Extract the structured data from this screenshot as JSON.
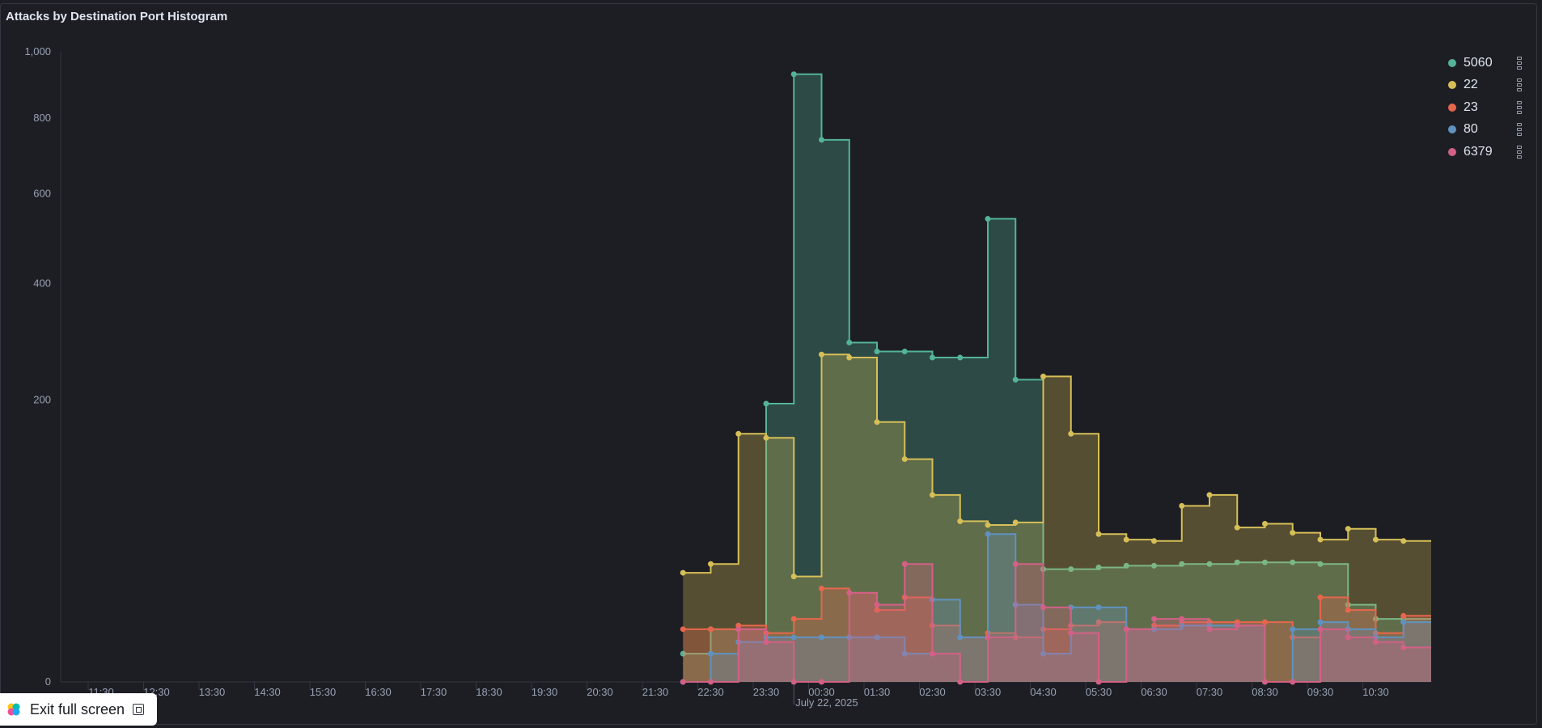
{
  "panel": {
    "title": "Attacks by Destination Port Histogram"
  },
  "exit_fullscreen": {
    "label": "Exit full screen",
    "icon": "fullscreen-exit-icon",
    "logo": "elastic-logo-icon"
  },
  "chart_data": {
    "type": "area",
    "title": "Attacks by Destination Port Histogram",
    "stacked": false,
    "step": true,
    "y_scale": "sqrt",
    "ylim": [
      0,
      1000
    ],
    "y_ticks": [
      0,
      200,
      400,
      600,
      800,
      1000
    ],
    "y_tick_labels": [
      "0",
      "200",
      "400",
      "600",
      "800",
      "1,000"
    ],
    "x_tick_labels": [
      "11:30",
      "12:30",
      "13:30",
      "14:30",
      "15:30",
      "16:30",
      "17:30",
      "18:30",
      "19:30",
      "20:30",
      "21:30",
      "22:30",
      "23:30",
      "00:30",
      "01:30",
      "02:30",
      "03:30",
      "04:30",
      "05:30",
      "06:30",
      "07:30",
      "08:30",
      "09:30",
      "10:30"
    ],
    "x_subtitle": "July 22, 2025",
    "x_subtitle_at": "00:00",
    "legend_position": "top-right",
    "grid": false,
    "series": [
      {
        "name": "5060",
        "color": "#54b399",
        "start_time": "22:00",
        "interval_minutes": 30,
        "values": [
          2,
          7,
          7,
          195,
          930,
          740,
          290,
          275,
          275,
          265,
          265,
          540,
          230,
          32,
          32,
          33,
          34,
          34,
          35,
          35,
          36,
          36,
          36,
          35,
          15,
          10,
          10
        ]
      },
      {
        "name": "22",
        "color": "#d6bf57",
        "start_time": "22:00",
        "interval_minutes": 30,
        "values": [
          30,
          35,
          155,
          150,
          28,
          270,
          265,
          170,
          125,
          88,
          65,
          62,
          64,
          235,
          155,
          55,
          51,
          50,
          78,
          88,
          60,
          63,
          56,
          51,
          59,
          51,
          50
        ]
      },
      {
        "name": "23",
        "color": "#e7664c",
        "start_time": "22:00",
        "interval_minutes": 30,
        "values": [
          7,
          7,
          8,
          6,
          10,
          22,
          20,
          13,
          18,
          8,
          5,
          6,
          5,
          7,
          8,
          9,
          7,
          8,
          9,
          9,
          9,
          9,
          5,
          18,
          13,
          6,
          11
        ]
      },
      {
        "name": "80",
        "color": "#6092c0",
        "start_time": "22:00",
        "interval_minutes": 30,
        "values": [
          0,
          2,
          4,
          5,
          5,
          5,
          5,
          5,
          2,
          17,
          5,
          55,
          15,
          2,
          14,
          14,
          7,
          7,
          8,
          8,
          8,
          0,
          7,
          9,
          7,
          5,
          9
        ]
      },
      {
        "name": "6379",
        "color": "#d36086",
        "start_time": "22:00",
        "interval_minutes": 30,
        "values": [
          0,
          0,
          7,
          4,
          0,
          0,
          20,
          15,
          35,
          2,
          0,
          5,
          35,
          14,
          6,
          0,
          7,
          10,
          10,
          7,
          8,
          0,
          0,
          7,
          5,
          4,
          3
        ]
      }
    ]
  }
}
